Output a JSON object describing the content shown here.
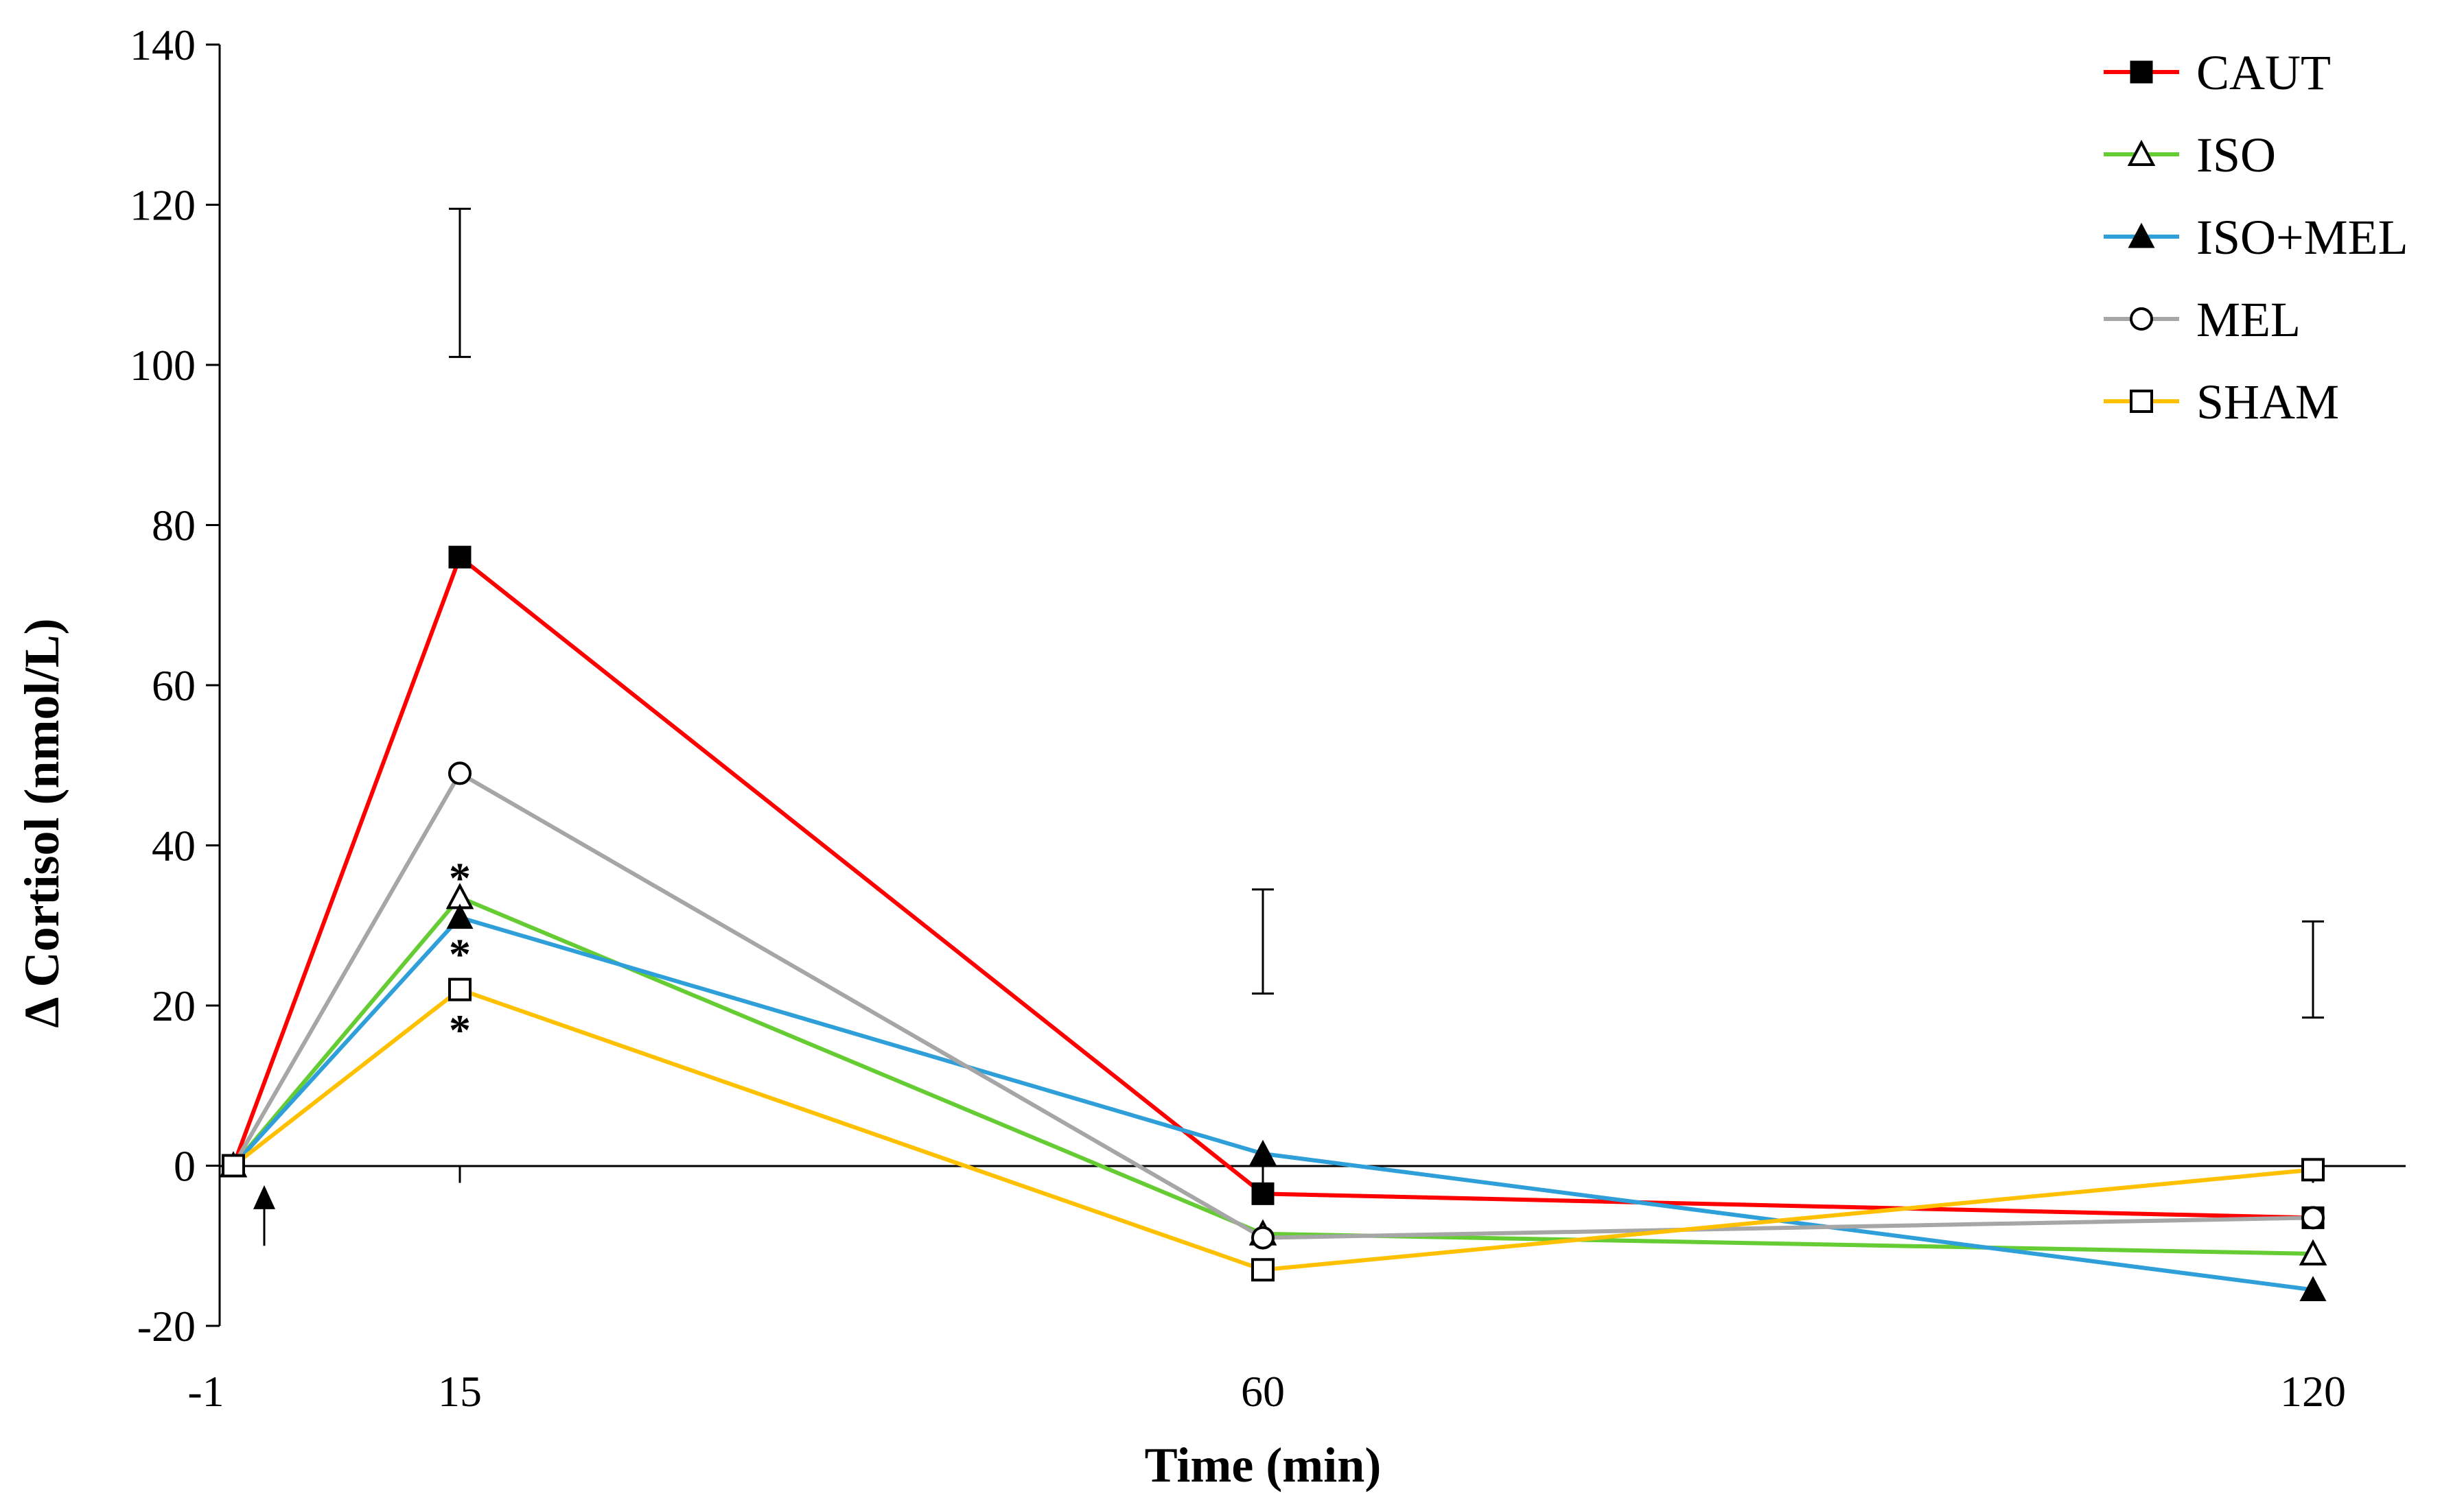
{
  "chart_data": {
    "type": "line",
    "title": "",
    "xlabel": "Time (min)",
    "ylabel": "Δ Cortisol (nmol/L)",
    "x": [
      -1,
      15,
      60,
      120
    ],
    "x_tick_labels": [
      "-1",
      "15",
      "60",
      "120"
    ],
    "y_ticks": [
      -20,
      0,
      20,
      40,
      60,
      80,
      100,
      120,
      140
    ],
    "y_tick_labels": [
      "-20",
      "0",
      "20",
      "40",
      "60",
      "80",
      "100",
      "120",
      "140"
    ],
    "ylim": [
      -20,
      140
    ],
    "grid": false,
    "legend_position": "top-right",
    "series": [
      {
        "name": "CAUT",
        "values": [
          0,
          76,
          -3.5,
          -6.5
        ],
        "color": "#ff0000",
        "marker": "filled-square"
      },
      {
        "name": "ISO",
        "values": [
          0,
          33.5,
          -8.5,
          -11
        ],
        "color": "#66cc33",
        "marker": "open-triangle"
      },
      {
        "name": "ISO+MEL",
        "values": [
          0,
          31,
          1.5,
          -15.5
        ],
        "color": "#2e9fd8",
        "marker": "filled-triangle"
      },
      {
        "name": "MEL",
        "values": [
          0,
          49,
          -9,
          -6.5
        ],
        "color": "#a6a6a6",
        "marker": "open-circle"
      },
      {
        "name": "SHAM",
        "values": [
          0,
          22,
          -13,
          -0.5
        ],
        "color": "#ffc000",
        "marker": "open-square"
      }
    ],
    "error_bars": [
      {
        "x": 15,
        "low": 101,
        "high": 119.5
      },
      {
        "x": 60,
        "low": 21.5,
        "high": 34.5
      },
      {
        "x": 120,
        "low": 18.5,
        "high": 30.5
      }
    ],
    "annotations": [
      {
        "text": "*",
        "x": 15,
        "y": 36.5
      },
      {
        "text": "*",
        "x": 15,
        "y": 27
      },
      {
        "text": "*",
        "x": 15,
        "y": 17.5
      }
    ],
    "treatment_arrow": {
      "x": 0,
      "y_from": -10,
      "y_to": -2
    }
  }
}
